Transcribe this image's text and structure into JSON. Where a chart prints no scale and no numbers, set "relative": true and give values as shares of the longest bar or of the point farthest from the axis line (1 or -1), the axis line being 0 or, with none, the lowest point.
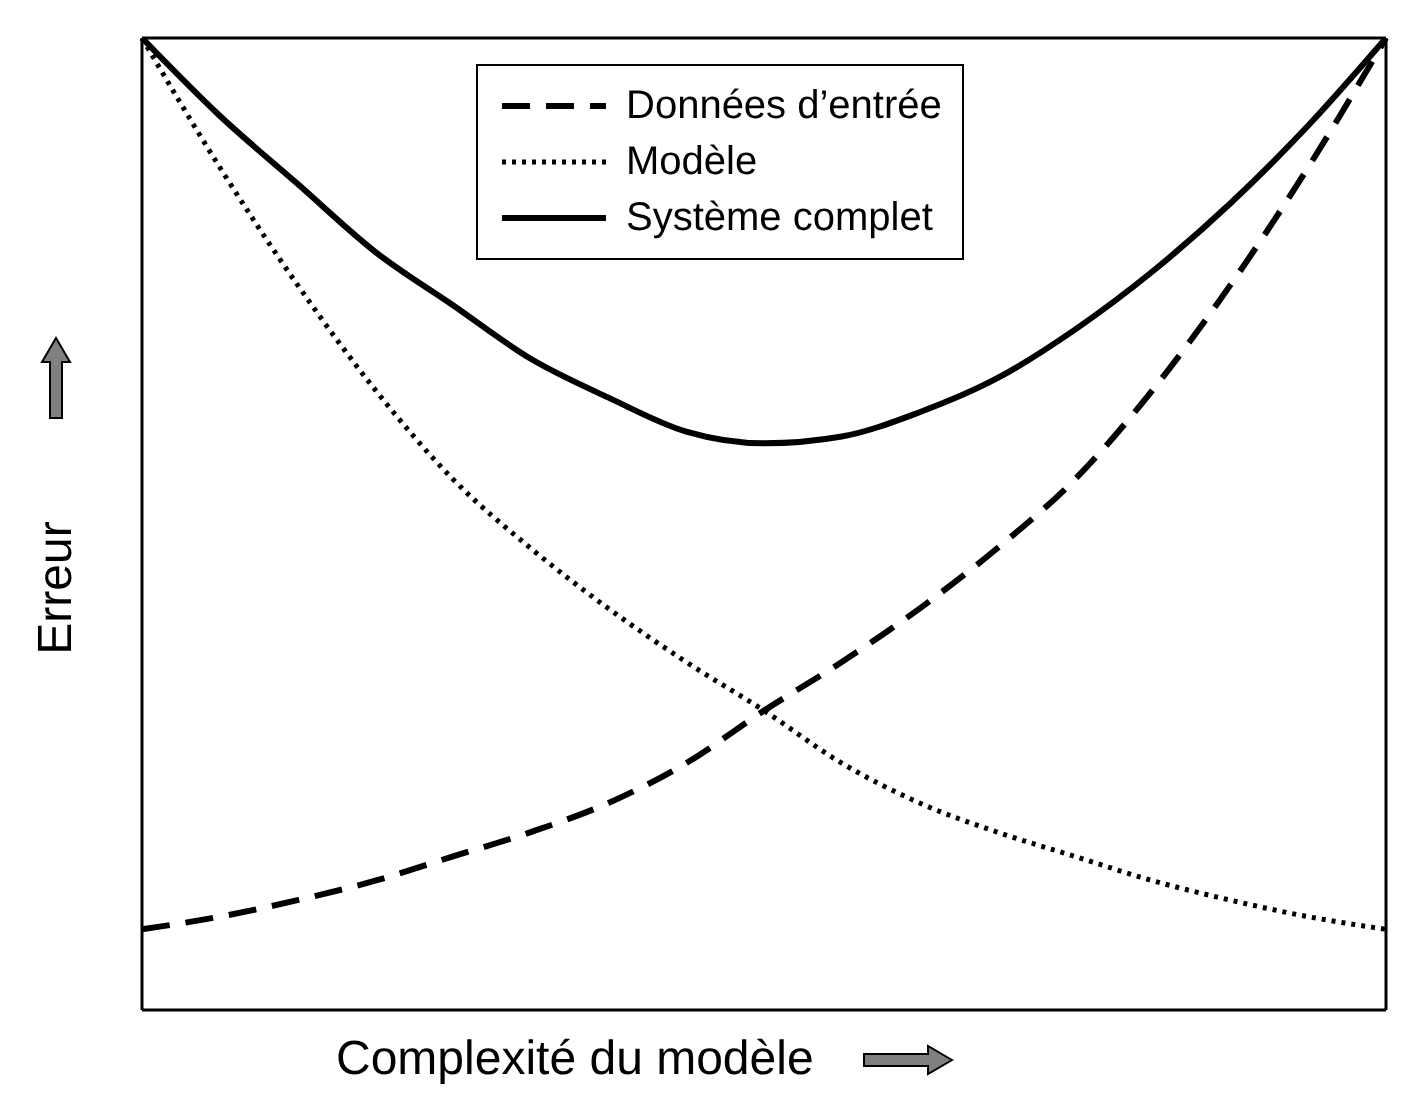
{
  "chart_data": {
    "type": "line",
    "relative": true,
    "xlabel": "Complexité du modèle",
    "ylabel": "Erreur",
    "legend": "top",
    "marker": "none",
    "categories": [
      null,
      null,
      null,
      null,
      null,
      null,
      null,
      null,
      null,
      null,
      null,
      null,
      null,
      null,
      null,
      null,
      null
    ],
    "series": [
      {
        "name": "Données d’entrée",
        "color": "#000000",
        "line_style": "dashed",
        "values": [
          0.083,
          0.096,
          0.113,
          0.133,
          0.158,
          0.183,
          0.213,
          0.254,
          0.308,
          0.358,
          0.413,
          0.475,
          0.546,
          0.638,
          0.746,
          0.867,
          1.0
        ]
      },
      {
        "name": "Modèle",
        "color": "#000000",
        "line_style": "dotted",
        "values": [
          1.0,
          0.867,
          0.746,
          0.638,
          0.546,
          0.475,
          0.413,
          0.358,
          0.308,
          0.254,
          0.213,
          0.183,
          0.158,
          0.133,
          0.113,
          0.096,
          0.083
        ]
      },
      {
        "name": "Système complet",
        "color": "#000000",
        "line_style": "solid",
        "values": [
          1.0,
          0.92,
          0.85,
          0.78,
          0.725,
          0.67,
          0.63,
          0.595,
          0.583,
          0.59,
          0.615,
          0.65,
          0.7,
          0.76,
          0.83,
          0.91,
          1.0
        ]
      }
    ]
  }
}
